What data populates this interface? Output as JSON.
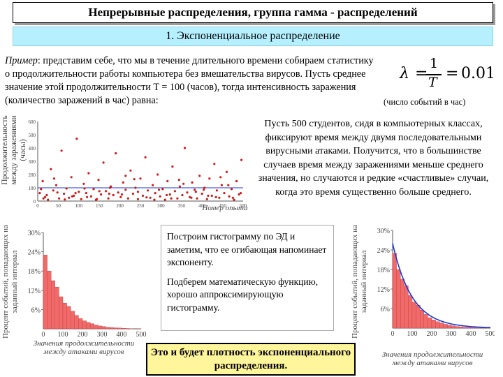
{
  "slide": {
    "title": "Непрерывные распределения, группа гамма - распределений",
    "subtitle": "1. Экспоненциальное распределение",
    "example": {
      "lead": "Пример",
      "body": ": представим себе, что мы в течение длительного времени собираем статистику о продолжительности работы компьютера без вмешательства вирусов. Пусть среднее значение этой продолжительности T = 100 (часов), тогда интенсивность заражения (количество заражений в час) равна:"
    },
    "formula": {
      "lambda": "λ",
      "equals": "=",
      "numerator": "1",
      "denominator": "T",
      "value": "0.01"
    },
    "rate_note": "(число событий в час)",
    "students_text": "Пусть 500 студентов, сидя в компьютерных классах, фиксируют время между двумя последовательными вирусными атаками. Получится, что в большинстве случаев время между заражениями меньше среднего значения, но случаются и редкие «счастливые» случаи, когда это время существенно больше среднего.",
    "histogram_box": {
      "p1": "Построим гистограмму по ЭД и заметим, что ее огибающая напоминает экспоненту.",
      "p2": "Подберем математическую функцию, хорошо аппроксимирующую гистограмму."
    },
    "conclusion": "Это и будет плотность экспоненциального распределения."
  },
  "chart_data": [
    {
      "type": "scatter",
      "title": "",
      "xlabel": "Номер опыта",
      "ylabel": "Продолжительность между заражениями (часы)",
      "xlim": [
        0,
        500
      ],
      "ylim": [
        0,
        600
      ],
      "x_ticks": [
        "0",
        "50",
        "100",
        "150",
        "200",
        "250",
        "300",
        "350",
        "400",
        "450",
        "500"
      ],
      "y_ticks": [
        "0",
        "100",
        "200",
        "300",
        "400",
        "500",
        "600"
      ],
      "reference_line_y": 100,
      "color": "#d11a1a",
      "grid": false,
      "points": [
        [
          5,
          60
        ],
        [
          12,
          150
        ],
        [
          18,
          30
        ],
        [
          25,
          10
        ],
        [
          32,
          240
        ],
        [
          38,
          80
        ],
        [
          45,
          120
        ],
        [
          52,
          20
        ],
        [
          58,
          380
        ],
        [
          64,
          55
        ],
        [
          70,
          95
        ],
        [
          76,
          25
        ],
        [
          82,
          180
        ],
        [
          88,
          40
        ],
        [
          95,
          470
        ],
        [
          100,
          70
        ],
        [
          106,
          15
        ],
        [
          112,
          130
        ],
        [
          118,
          60
        ],
        [
          124,
          210
        ],
        [
          130,
          35
        ],
        [
          136,
          90
        ],
        [
          142,
          10
        ],
        [
          148,
          160
        ],
        [
          154,
          50
        ],
        [
          160,
          290
        ],
        [
          166,
          75
        ],
        [
          172,
          20
        ],
        [
          178,
          110
        ],
        [
          184,
          45
        ],
        [
          190,
          360
        ],
        [
          196,
          65
        ],
        [
          202,
          30
        ],
        [
          208,
          140
        ],
        [
          214,
          85
        ],
        [
          220,
          20
        ],
        [
          226,
          230
        ],
        [
          232,
          55
        ],
        [
          238,
          100
        ],
        [
          244,
          15
        ],
        [
          250,
          170
        ],
        [
          256,
          40
        ],
        [
          262,
          330
        ],
        [
          268,
          80
        ],
        [
          274,
          25
        ],
        [
          280,
          120
        ],
        [
          286,
          60
        ],
        [
          292,
          200
        ],
        [
          298,
          35
        ],
        [
          304,
          90
        ],
        [
          310,
          10
        ],
        [
          316,
          150
        ],
        [
          322,
          50
        ],
        [
          328,
          260
        ],
        [
          334,
          75
        ],
        [
          340,
          20
        ],
        [
          346,
          110
        ],
        [
          352,
          45
        ],
        [
          358,
          400
        ],
        [
          364,
          65
        ],
        [
          370,
          30
        ],
        [
          376,
          140
        ],
        [
          382,
          85
        ],
        [
          388,
          20
        ],
        [
          394,
          190
        ],
        [
          400,
          55
        ],
        [
          406,
          100
        ],
        [
          412,
          15
        ],
        [
          418,
          170
        ],
        [
          424,
          40
        ],
        [
          430,
          280
        ],
        [
          436,
          80
        ],
        [
          442,
          25
        ],
        [
          448,
          120
        ],
        [
          454,
          60
        ],
        [
          460,
          220
        ],
        [
          466,
          35
        ],
        [
          472,
          90
        ],
        [
          478,
          10
        ],
        [
          484,
          150
        ],
        [
          490,
          50
        ],
        [
          496,
          310
        ],
        [
          8,
          90
        ],
        [
          22,
          45
        ],
        [
          40,
          170
        ],
        [
          66,
          12
        ],
        [
          92,
          60
        ],
        [
          120,
          30
        ],
        [
          150,
          75
        ],
        [
          176,
          100
        ],
        [
          205,
          50
        ],
        [
          235,
          165
        ],
        [
          265,
          28
        ],
        [
          295,
          85
        ],
        [
          325,
          20
        ],
        [
          355,
          130
        ],
        [
          385,
          70
        ],
        [
          415,
          40
        ],
        [
          445,
          180
        ],
        [
          475,
          25
        ],
        [
          14,
          20
        ],
        [
          48,
          65
        ],
        [
          84,
          35
        ],
        [
          114,
          95
        ],
        [
          144,
          15
        ],
        [
          174,
          55
        ],
        [
          214,
          190
        ],
        [
          244,
          70
        ],
        [
          284,
          10
        ],
        [
          314,
          45
        ],
        [
          344,
          160
        ],
        [
          374,
          25
        ],
        [
          404,
          85
        ],
        [
          434,
          30
        ],
        [
          464,
          120
        ],
        [
          494,
          60
        ]
      ]
    },
    {
      "type": "bar",
      "title": "",
      "xlabel": "Значения продолжительности между атаками вирусов",
      "ylabel": "Процент событий, попадающих на заданный интервал",
      "xlim": [
        0,
        500
      ],
      "ylim": [
        0,
        30
      ],
      "x_ticks": [
        "0",
        "100",
        "200",
        "300",
        "400",
        "500"
      ],
      "y_ticks": [
        "6%",
        "12%",
        "18%",
        "24%",
        "30%"
      ],
      "bin_width": 20,
      "values": [
        23,
        18,
        15,
        13,
        10,
        8,
        7,
        5.5,
        4.2,
        3.2,
        2.5,
        2.0,
        1.6,
        1.2,
        0.9,
        0.7,
        0.5,
        0.4,
        0.3,
        0.25,
        0.15,
        0.1,
        0.05,
        0.0,
        0.05
      ],
      "color": "#f06a6a"
    },
    {
      "type": "bar",
      "title": "",
      "xlabel": "Значения продолжительности между атаками вирусов",
      "ylabel": "Процент событий, попадающих на заданный интервал",
      "xlim": [
        0,
        500
      ],
      "ylim": [
        0,
        30
      ],
      "x_ticks": [
        "0",
        "100",
        "200",
        "300",
        "400",
        "500"
      ],
      "y_ticks": [
        "6%",
        "12%",
        "18%",
        "24%",
        "30%"
      ],
      "bin_width": 20,
      "values": [
        23,
        18,
        15,
        13,
        10,
        8,
        7,
        5.5,
        4.2,
        3.2,
        2.5,
        2.0,
        1.6,
        1.2,
        0.9,
        0.7,
        0.5,
        0.4,
        0.3,
        0.25,
        0.15,
        0.1,
        0.05,
        0.0,
        0.05
      ],
      "curve": {
        "type": "exponential",
        "amplitude": 26,
        "rate": 0.01
      },
      "color": "#f06a6a",
      "curve_color": "#1a3ad1"
    }
  ]
}
